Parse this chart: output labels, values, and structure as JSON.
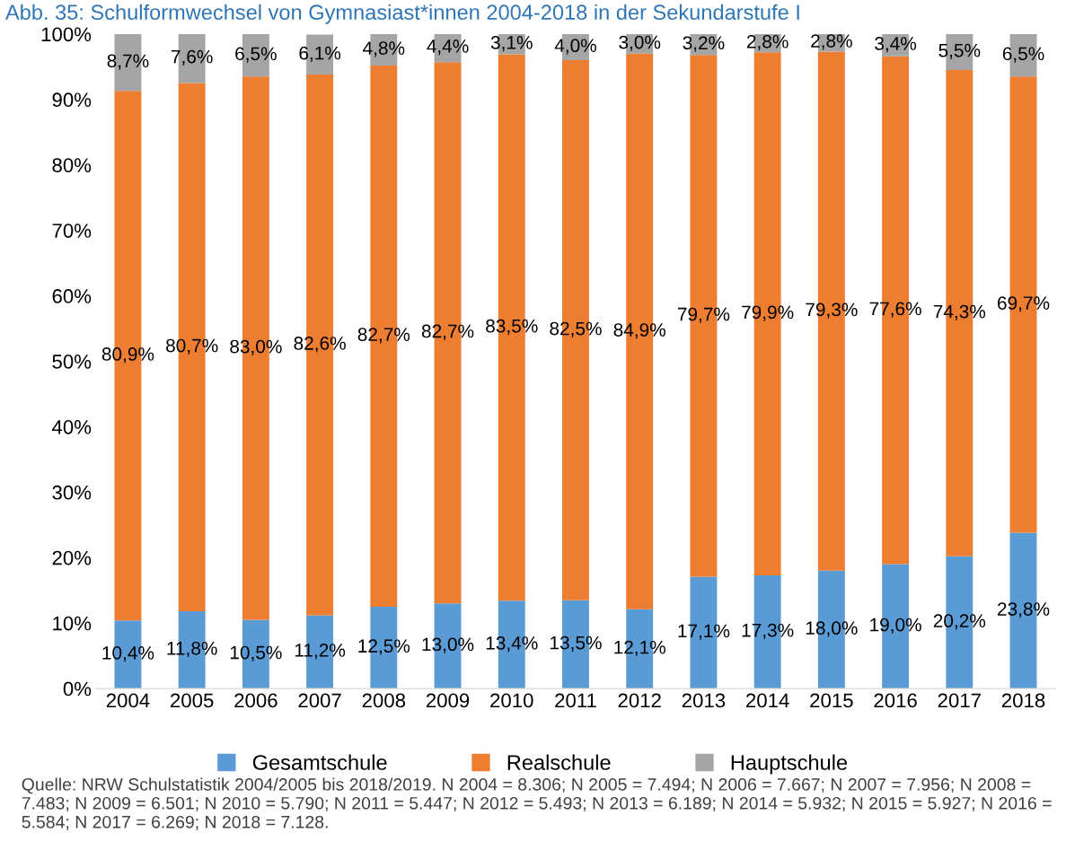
{
  "chart_data": {
    "type": "bar",
    "stacked": true,
    "title": "Abb. 35: Schulformwechsel von Gymnasiast*innen 2004-2018 in der Sekundarstufe I",
    "categories": [
      "2004",
      "2005",
      "2006",
      "2007",
      "2008",
      "2009",
      "2010",
      "2011",
      "2012",
      "2013",
      "2014",
      "2015",
      "2016",
      "2017",
      "2018"
    ],
    "series": [
      {
        "name": "Gesamtschule",
        "color": "#5b9bd5",
        "values": [
          10.4,
          11.8,
          10.5,
          11.2,
          12.5,
          13.0,
          13.4,
          13.5,
          12.1,
          17.1,
          17.3,
          18.0,
          19.0,
          20.2,
          23.8
        ],
        "value_labels": [
          "10,4%",
          "11,8%",
          "10,5%",
          "11,2%",
          "12,5%",
          "13,0%",
          "13,4%",
          "13,5%",
          "12,1%",
          "17,1%",
          "17,3%",
          "18,0%",
          "19,0%",
          "20,2%",
          "23,8%"
        ]
      },
      {
        "name": "Realschule",
        "color": "#ed7d31",
        "values": [
          80.9,
          80.7,
          83.0,
          82.6,
          82.7,
          82.7,
          83.5,
          82.5,
          84.9,
          79.7,
          79.9,
          79.3,
          77.6,
          74.3,
          69.7
        ],
        "value_labels": [
          "80,9%",
          "80,7%",
          "83,0%",
          "82,6%",
          "82,7%",
          "82,7%",
          "83,5%",
          "82,5%",
          "84,9%",
          "79,7%",
          "79,9%",
          "79,3%",
          "77,6%",
          "74,3%",
          "69,7%"
        ]
      },
      {
        "name": "Hauptschule",
        "color": "#a5a5a5",
        "values": [
          8.7,
          7.6,
          6.5,
          6.1,
          4.8,
          4.4,
          3.1,
          4.0,
          3.0,
          3.2,
          2.8,
          2.8,
          3.4,
          5.5,
          6.5
        ],
        "value_labels": [
          "8,7%",
          "7,6%",
          "6,5%",
          "6,1%",
          "4,8%",
          "4,4%",
          "3,1%",
          "4,0%",
          "3,0%",
          "3,2%",
          "2,8%",
          "2,8%",
          "3,4%",
          "5,5%",
          "6,5%"
        ]
      }
    ],
    "ylim": [
      0,
      100
    ],
    "yticks": [
      {
        "value": 0,
        "label": "0%"
      },
      {
        "value": 10,
        "label": "10%"
      },
      {
        "value": 20,
        "label": "20%"
      },
      {
        "value": 30,
        "label": "30%"
      },
      {
        "value": 40,
        "label": "40%"
      },
      {
        "value": 50,
        "label": "50%"
      },
      {
        "value": 60,
        "label": "60%"
      },
      {
        "value": 70,
        "label": "70%"
      },
      {
        "value": 80,
        "label": "80%"
      },
      {
        "value": 90,
        "label": "90%"
      },
      {
        "value": 100,
        "label": "100%"
      }
    ],
    "grid": false,
    "legend": "bottom",
    "annotations": [
      "Quelle: NRW Schulstatistik 2004/2005 bis 2018/2019. N 2004 = 8.306; N 2005 = 7.494; N 2006 = 7.667; N 2007 = 7.956; N 2008 = 7.483; N 2009 = 6.501; N 2010 = 5.790; N 2011 = 5.447; N 2012 = 5.493; N 2013 = 6.189; N 2014 = 5.932; N 2015 = 5.927; N 2016 = 5.584; N 2017 = 6.269; N 2018 = 7.128."
    ]
  }
}
